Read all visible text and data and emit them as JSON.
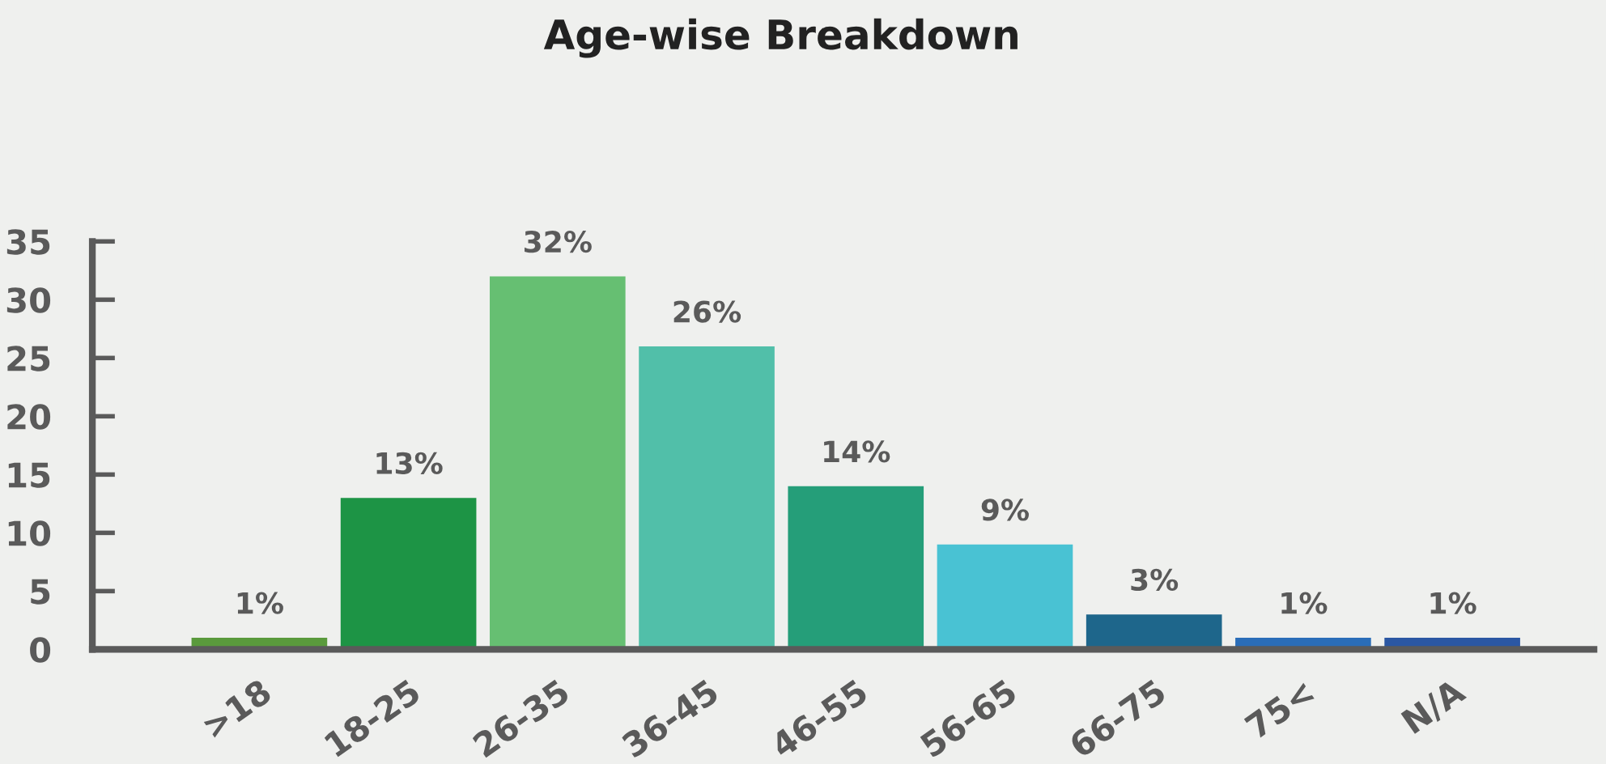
{
  "chart_data": {
    "type": "bar",
    "title": "Age-wise Breakdown",
    "categories": [
      ">18",
      "18-25",
      "26-35",
      "36-45",
      "46-55",
      "56-65",
      "66-75",
      "75<",
      "N/A"
    ],
    "values": [
      1,
      13,
      32,
      26,
      14,
      9,
      3,
      1,
      1
    ],
    "colors": [
      "#5a9a3c",
      "#1d9445",
      "#66bf72",
      "#51bfa9",
      "#259e79",
      "#49c2d3",
      "#1e668b",
      "#2a6db8",
      "#2b57a3"
    ],
    "value_labels": [
      "1%",
      "13%",
      "32%",
      "26%",
      "14%",
      "9%",
      "3%",
      "1%",
      "1%"
    ],
    "ylim": [
      0,
      35
    ],
    "yticks": [
      0,
      5,
      10,
      15,
      20,
      25,
      30,
      35
    ],
    "grid": false,
    "legend": false
  }
}
